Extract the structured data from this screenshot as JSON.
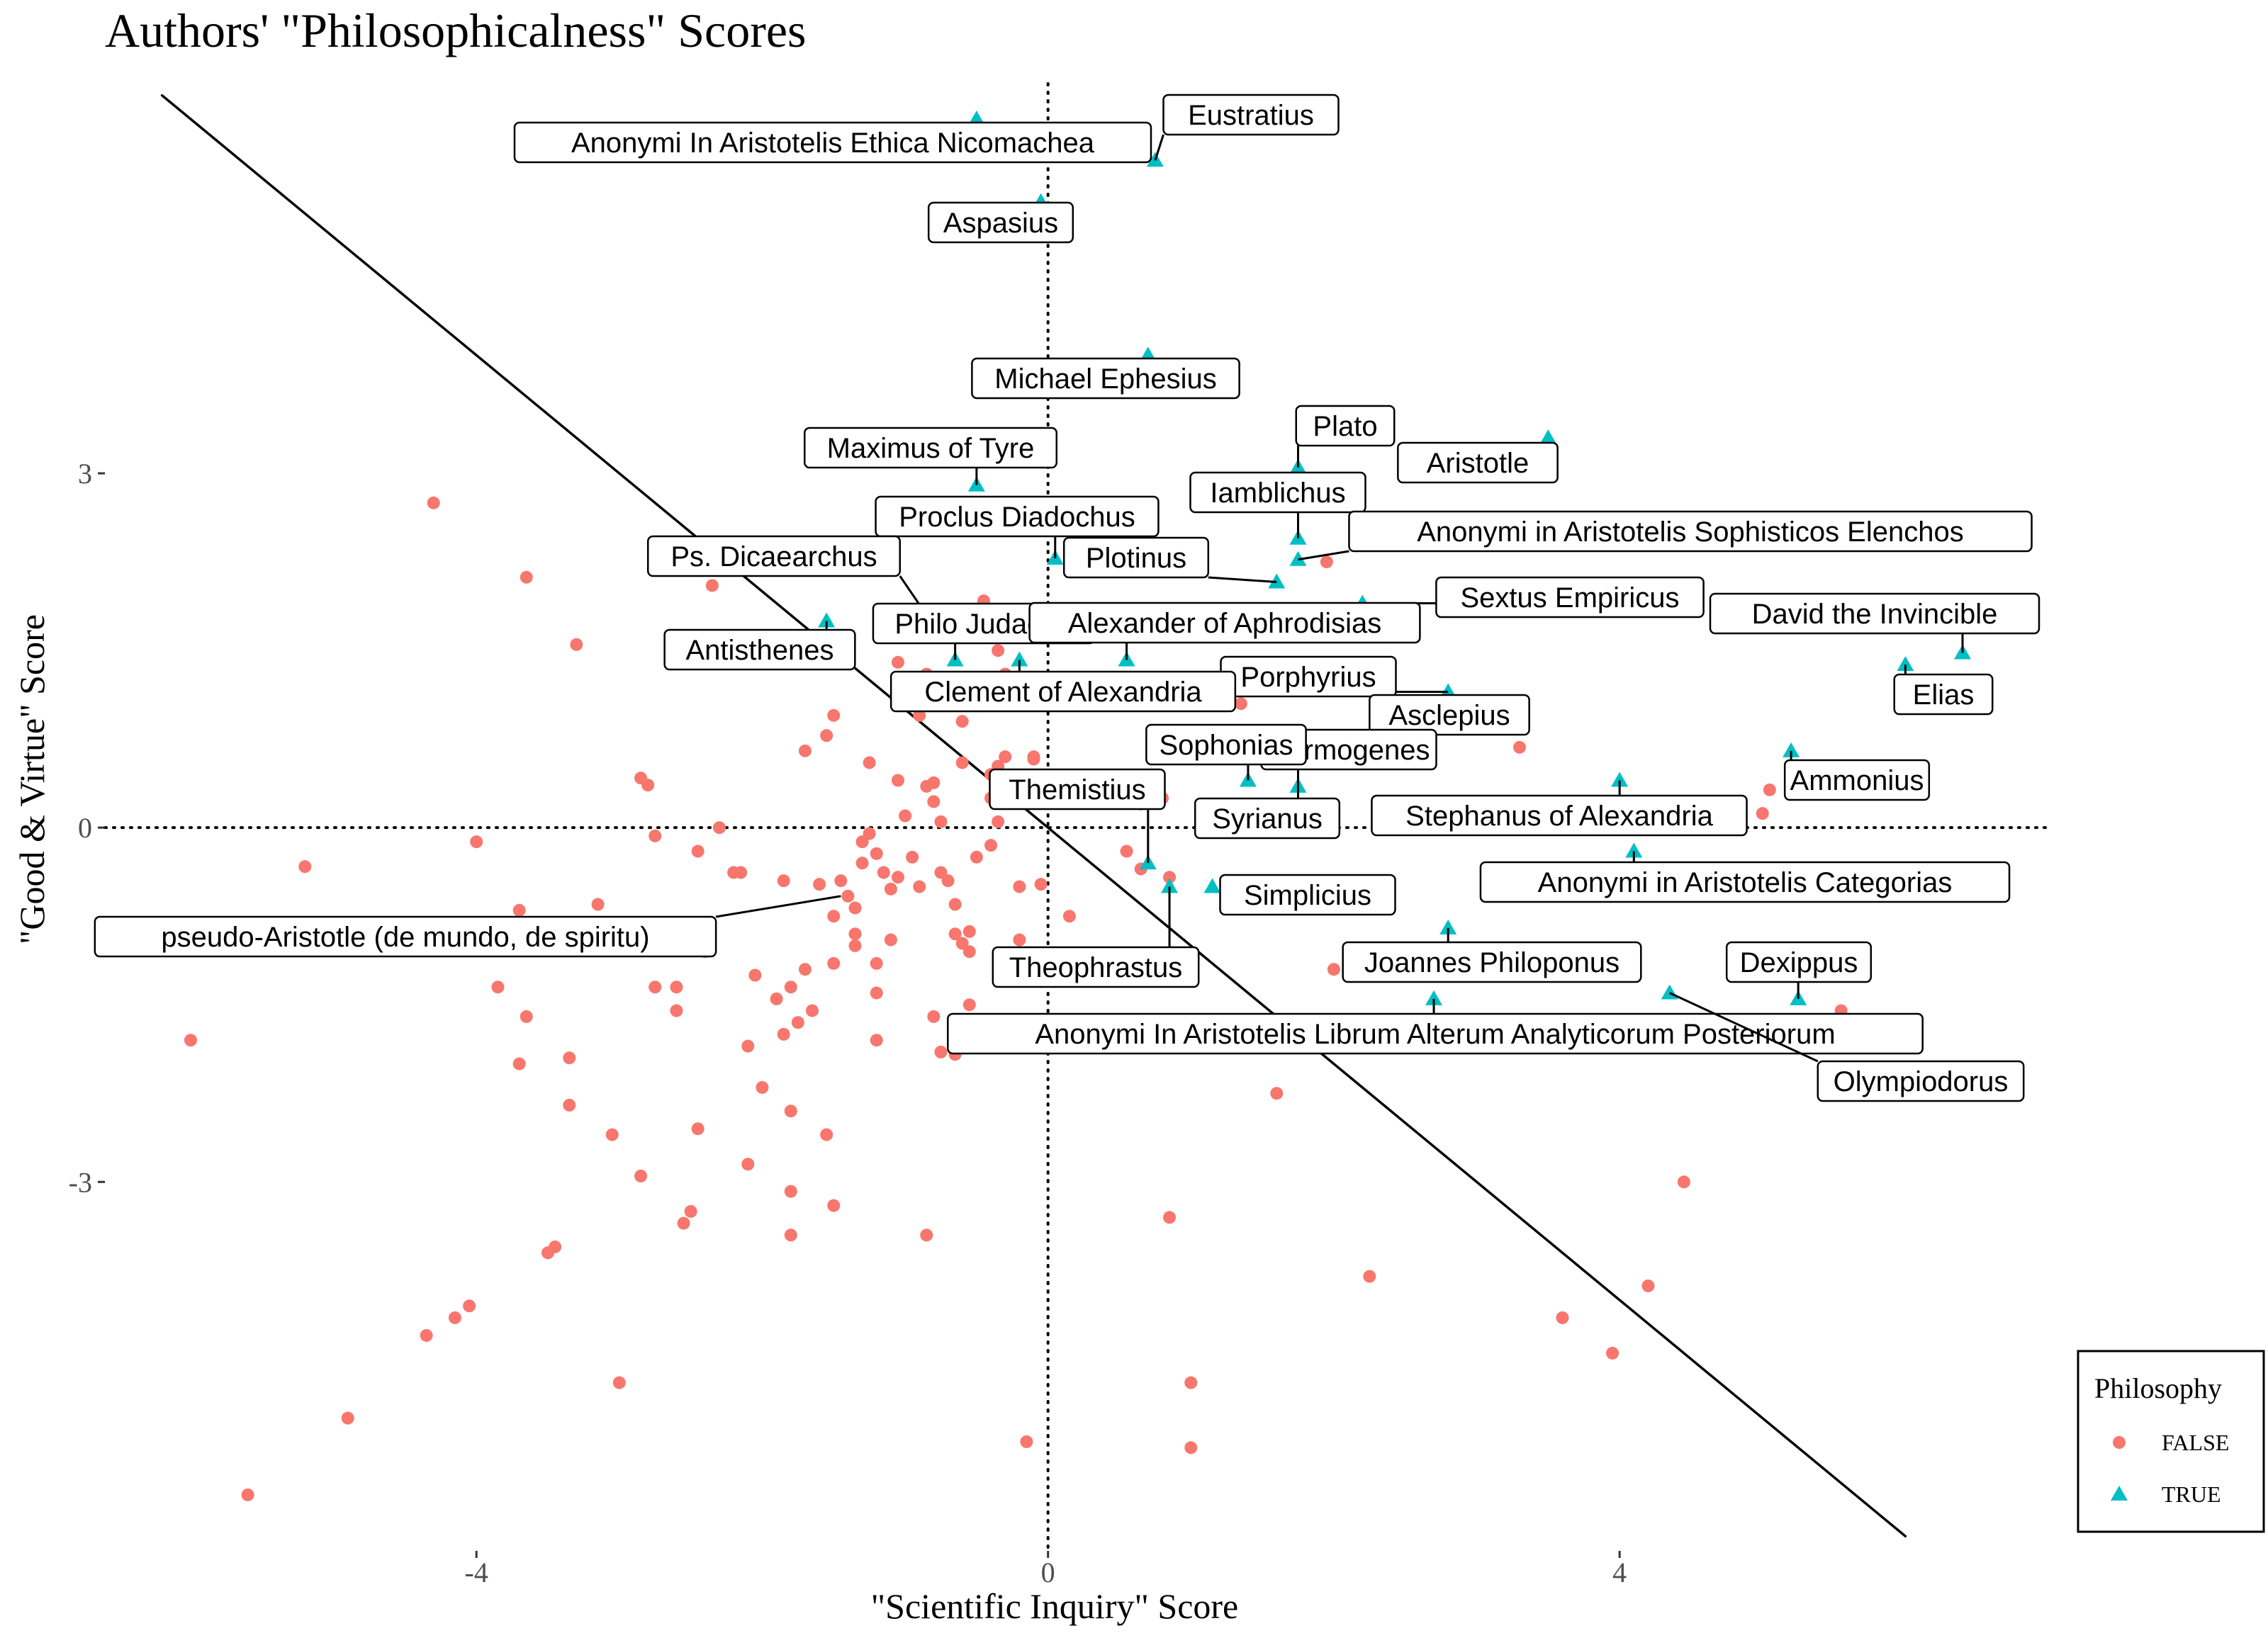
{
  "chart_data": {
    "type": "scatter",
    "title": "Authors' \"Philosophicalness\" Scores",
    "xlabel": "\"Scientific Inquiry\" Score",
    "ylabel": "\"Good & Virtue\" Score",
    "xlim": [
      -6.6,
      7.0
    ],
    "ylim": [
      -6.1,
      6.3
    ],
    "xticks": [
      -4,
      0,
      4
    ],
    "xtick_labels": [
      "-4",
      "0",
      "4"
    ],
    "yticks": [
      -3,
      0,
      3
    ],
    "ytick_labels": [
      "-3",
      "0",
      "3"
    ],
    "grid": false,
    "reference_lines": [
      {
        "type": "vline",
        "x": 0,
        "style": "dotted"
      },
      {
        "type": "hline",
        "y": 0,
        "style": "dotted"
      },
      {
        "type": "abline",
        "slope": -1,
        "intercept": 0,
        "x_range": [
          -6.2,
          6.0
        ],
        "style": "solid"
      }
    ],
    "legend": {
      "title": "Philosophy",
      "placement": "right-bottom",
      "entries": [
        "FALSE",
        "TRUE"
      ]
    },
    "colors": {
      "FALSE": "#F8766D",
      "TRUE": "#00BFC4"
    },
    "series": [
      {
        "name": "FALSE",
        "marker": "circle",
        "points": [
          [
            -4.3,
            2.75
          ],
          [
            -3.65,
            2.12
          ],
          [
            -3.3,
            1.55
          ],
          [
            -2.35,
            2.05
          ],
          [
            -4.0,
            -0.12
          ],
          [
            -5.2,
            -0.33
          ],
          [
            -6.0,
            -1.8
          ],
          [
            -5.6,
            -5.65
          ],
          [
            -4.9,
            -5.0
          ],
          [
            -4.35,
            -4.3
          ],
          [
            -4.15,
            -4.15
          ],
          [
            -4.05,
            -4.05
          ],
          [
            -3.0,
            -4.7
          ],
          [
            -3.5,
            -3.6
          ],
          [
            -3.45,
            -3.55
          ],
          [
            -3.35,
            -2.35
          ],
          [
            -3.05,
            -2.6
          ],
          [
            -2.85,
            -2.95
          ],
          [
            -2.55,
            -3.35
          ],
          [
            -2.5,
            -3.25
          ],
          [
            -2.45,
            -2.55
          ],
          [
            -3.7,
            -0.7
          ],
          [
            -3.65,
            -1.6
          ],
          [
            -3.85,
            -1.35
          ],
          [
            -3.7,
            -2.0
          ],
          [
            -3.35,
            -1.95
          ],
          [
            -3.15,
            -0.65
          ],
          [
            -2.75,
            -1.35
          ],
          [
            -2.6,
            -1.55
          ],
          [
            -2.6,
            -1.35
          ],
          [
            -2.85,
            0.42
          ],
          [
            -2.8,
            0.36
          ],
          [
            -2.75,
            -0.07
          ],
          [
            -2.45,
            -0.2
          ],
          [
            -2.4,
            -1.05
          ],
          [
            -2.3,
            0.0
          ],
          [
            -2.2,
            -0.38
          ],
          [
            -2.15,
            -0.38
          ],
          [
            -2.05,
            -1.25
          ],
          [
            -2.1,
            -1.85
          ],
          [
            -2.0,
            -2.2
          ],
          [
            -2.1,
            -2.85
          ],
          [
            -1.85,
            -0.45
          ],
          [
            -1.9,
            -1.45
          ],
          [
            -1.85,
            -1.75
          ],
          [
            -1.8,
            -2.4
          ],
          [
            -1.75,
            -1.65
          ],
          [
            -1.7,
            -1.2
          ],
          [
            -1.6,
            -0.48
          ],
          [
            -1.65,
            -1.55
          ],
          [
            -1.55,
            -2.6
          ],
          [
            -1.5,
            -0.75
          ],
          [
            -1.5,
            -1.15
          ],
          [
            -1.45,
            -0.45
          ],
          [
            -1.4,
            -0.58
          ],
          [
            -1.35,
            -0.68
          ],
          [
            -1.35,
            -0.9
          ],
          [
            -1.35,
            -1.0
          ],
          [
            -1.3,
            -0.12
          ],
          [
            -1.3,
            -0.3
          ],
          [
            -1.25,
            -0.05
          ],
          [
            -1.2,
            -0.22
          ],
          [
            -1.2,
            -1.15
          ],
          [
            -1.2,
            -1.4
          ],
          [
            -1.2,
            -1.8
          ],
          [
            -1.15,
            -0.38
          ],
          [
            -1.1,
            -0.52
          ],
          [
            -1.1,
            -0.95
          ],
          [
            -1.05,
            -0.42
          ],
          [
            -1.0,
            0.1
          ],
          [
            -0.95,
            -0.25
          ],
          [
            -0.9,
            -0.5
          ],
          [
            -0.85,
            0.35
          ],
          [
            -0.8,
            0.38
          ],
          [
            -0.75,
            -0.38
          ],
          [
            -0.7,
            -0.45
          ],
          [
            -0.65,
            -0.65
          ],
          [
            -0.65,
            -0.9
          ],
          [
            -0.6,
            -0.98
          ],
          [
            -0.55,
            -0.88
          ],
          [
            -0.8,
            -1.6
          ],
          [
            -0.75,
            -1.9
          ],
          [
            -0.55,
            -1.05
          ],
          [
            -0.5,
            -0.25
          ],
          [
            -0.85,
            -3.45
          ],
          [
            -1.7,
            0.65
          ],
          [
            -1.5,
            0.95
          ],
          [
            -1.55,
            0.78
          ],
          [
            -1.25,
            0.55
          ],
          [
            -1.05,
            0.4
          ],
          [
            -0.8,
            0.22
          ],
          [
            -0.75,
            0.05
          ],
          [
            -0.6,
            0.55
          ],
          [
            -0.4,
            0.45
          ],
          [
            -0.35,
            0.52
          ],
          [
            -0.3,
            0.6
          ],
          [
            -0.4,
            0.25
          ],
          [
            -1.05,
            1.4
          ],
          [
            -0.95,
            1.1
          ],
          [
            -0.9,
            0.95
          ],
          [
            -0.85,
            1.3
          ],
          [
            -0.7,
            1.05
          ],
          [
            -0.6,
            0.9
          ],
          [
            -0.45,
            1.92
          ],
          [
            -0.35,
            1.5
          ],
          [
            -0.3,
            1.3
          ],
          [
            -0.4,
            -0.15
          ],
          [
            -0.35,
            0.05
          ],
          [
            -0.2,
            -0.5
          ],
          [
            -0.2,
            -0.95
          ],
          [
            -0.15,
            -1.3
          ],
          [
            -0.1,
            0.6
          ],
          [
            -0.1,
            0.58
          ],
          [
            -0.05,
            -0.48
          ],
          [
            0.15,
            -0.75
          ],
          [
            -0.55,
            -1.5
          ],
          [
            -0.65,
            -1.92
          ],
          [
            -0.15,
            -5.2
          ],
          [
            -1.8,
            -3.08
          ],
          [
            -1.8,
            -3.45
          ],
          [
            -1.5,
            -3.2
          ],
          [
            -1.8,
            -1.35
          ],
          [
            0.55,
            -0.2
          ],
          [
            0.65,
            -0.35
          ],
          [
            0.85,
            -0.42
          ],
          [
            0.9,
            -1.18
          ],
          [
            0.85,
            -3.3
          ],
          [
            1.0,
            -4.7
          ],
          [
            1.0,
            -5.25
          ],
          [
            1.35,
            1.05
          ],
          [
            1.55,
            1.25
          ],
          [
            1.6,
            -2.25
          ],
          [
            1.95,
            2.25
          ],
          [
            2.0,
            -1.2
          ],
          [
            2.25,
            -3.8
          ],
          [
            3.1,
            -0.45
          ],
          [
            3.3,
            0.68
          ],
          [
            3.6,
            -4.15
          ],
          [
            3.95,
            -4.45
          ],
          [
            4.2,
            -3.88
          ],
          [
            4.45,
            -3.0
          ],
          [
            5.0,
            0.12
          ],
          [
            5.05,
            0.32
          ],
          [
            5.55,
            -1.55
          ],
          [
            0.65,
            0.2
          ],
          [
            0.8,
            0.25
          ]
        ]
      },
      {
        "name": "TRUE",
        "marker": "triangle",
        "points": [
          [
            -0.5,
            6.0
          ],
          [
            0.75,
            5.65
          ],
          [
            -0.05,
            5.3
          ],
          [
            0.7,
            4.0
          ],
          [
            3.5,
            3.3
          ],
          [
            1.75,
            3.05
          ],
          [
            -0.5,
            2.9
          ],
          [
            1.75,
            2.45
          ],
          [
            0.05,
            2.28
          ],
          [
            1.75,
            2.27
          ],
          [
            1.6,
            2.08
          ],
          [
            2.2,
            1.9
          ],
          [
            -0.85,
            1.8
          ],
          [
            -1.55,
            1.75
          ],
          [
            -0.65,
            1.42
          ],
          [
            -0.2,
            1.42
          ],
          [
            0.55,
            1.42
          ],
          [
            2.8,
            1.15
          ],
          [
            6.0,
            1.38
          ],
          [
            6.4,
            1.48
          ],
          [
            5.2,
            0.65
          ],
          [
            1.4,
            0.4
          ],
          [
            1.75,
            0.35
          ],
          [
            4.0,
            0.4
          ],
          [
            4.1,
            -0.2
          ],
          [
            0.7,
            -0.3
          ],
          [
            0.85,
            -0.5
          ],
          [
            1.15,
            -0.5
          ],
          [
            2.8,
            -0.85
          ],
          [
            2.7,
            -1.45
          ],
          [
            4.35,
            -1.4
          ],
          [
            5.25,
            -1.45
          ]
        ]
      }
    ],
    "labels": [
      {
        "text": "Eustratius",
        "point": [
          0.75,
          5.65
        ]
      },
      {
        "text": "Anonymi In Aristotelis Ethica Nicomachea",
        "point": [
          0.75,
          5.65
        ]
      },
      {
        "text": "Aspasius",
        "point": [
          -0.05,
          5.3
        ]
      },
      {
        "text": "Michael Ephesius",
        "point": [
          0.7,
          4.0
        ]
      },
      {
        "text": "Plato",
        "point": [
          1.75,
          3.05
        ]
      },
      {
        "text": "Aristotle",
        "point": [
          3.5,
          3.3
        ]
      },
      {
        "text": "Maximus of Tyre",
        "point": [
          -0.5,
          2.9
        ]
      },
      {
        "text": "Iamblichus",
        "point": [
          1.75,
          2.45
        ]
      },
      {
        "text": "Proclus Diadochus",
        "point": [
          0.05,
          2.28
        ]
      },
      {
        "text": "Anonymi in Aristotelis Sophisticos Elenchos",
        "point": [
          1.75,
          2.27
        ]
      },
      {
        "text": "Plotinus",
        "point": [
          1.6,
          2.08
        ]
      },
      {
        "text": "Ps. Dicaearchus",
        "point": [
          -0.85,
          1.8
        ]
      },
      {
        "text": "Sextus Empiricus",
        "point": [
          2.2,
          1.9
        ]
      },
      {
        "text": "David the Invincible",
        "point": [
          6.4,
          1.48
        ]
      },
      {
        "text": "Philo Judaeus",
        "point": [
          -0.65,
          1.42
        ]
      },
      {
        "text": "Alexander of Aphrodisias",
        "point": [
          0.55,
          1.42
        ]
      },
      {
        "text": "Antisthenes",
        "point": [
          -1.55,
          1.75
        ]
      },
      {
        "text": "Elias",
        "point": [
          6.0,
          1.38
        ]
      },
      {
        "text": "Porphyrius",
        "point": [
          2.8,
          1.15
        ]
      },
      {
        "text": "Clement of Alexandria",
        "point": [
          -0.2,
          1.42
        ]
      },
      {
        "text": "Asclepius",
        "point": [
          2.8,
          1.15
        ]
      },
      {
        "text": "Hermogenes",
        "point": [
          1.75,
          0.35
        ]
      },
      {
        "text": "Sophonias",
        "point": [
          1.4,
          0.4
        ]
      },
      {
        "text": "Ammonius",
        "point": [
          5.2,
          0.65
        ]
      },
      {
        "text": "Themistius",
        "point": [
          0.7,
          -0.3
        ]
      },
      {
        "text": "Syrianus",
        "point": [
          1.75,
          0.35
        ]
      },
      {
        "text": "Stephanus of Alexandria",
        "point": [
          4.0,
          0.4
        ]
      },
      {
        "text": "Anonymi in Aristotelis Categorias",
        "point": [
          4.1,
          -0.2
        ]
      },
      {
        "text": "Simplicius",
        "point": [
          1.15,
          -0.5
        ]
      },
      {
        "text": "pseudo-Aristotle (de mundo, de spiritu)",
        "point": [
          -1.45,
          -0.58
        ]
      },
      {
        "text": "Theophrastus",
        "point": [
          0.85,
          -0.5
        ]
      },
      {
        "text": "Joannes Philoponus",
        "point": [
          2.8,
          -0.85
        ]
      },
      {
        "text": "Dexippus",
        "point": [
          5.25,
          -1.45
        ]
      },
      {
        "text": "Anonymi In Aristotelis Librum Alterum Analyticorum Posteriorum",
        "point": [
          2.7,
          -1.45
        ]
      },
      {
        "text": "Olympiodorus",
        "point": [
          4.35,
          -1.4
        ]
      }
    ]
  }
}
